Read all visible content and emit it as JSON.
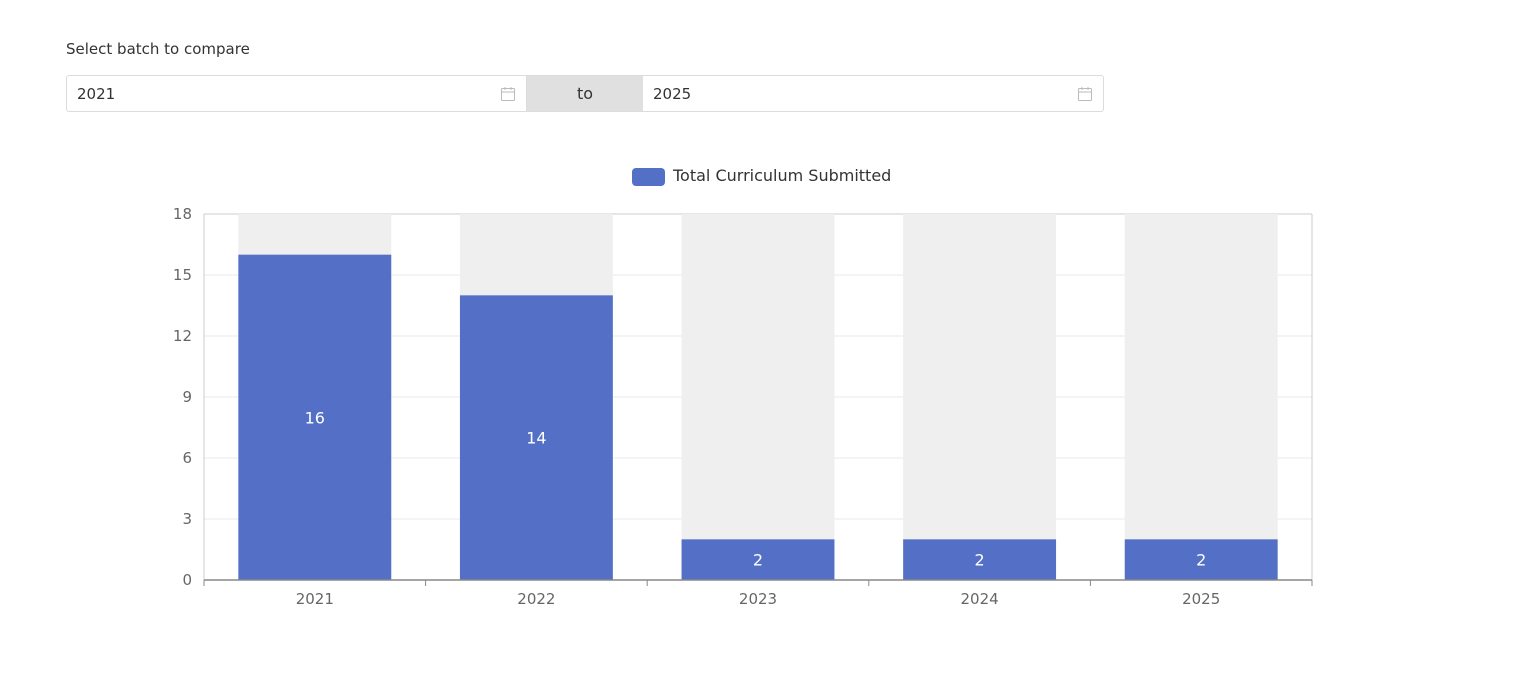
{
  "filter": {
    "label": "Select batch to compare",
    "start_value": "2021",
    "separator": "to",
    "end_value": "2025",
    "calendar_icon": "calendar-icon"
  },
  "colors": {
    "bar": "#5470c6",
    "bar_background": "#efefef",
    "grid": "#e6e9f0",
    "axis": "#888888"
  },
  "chart_data": {
    "type": "bar",
    "categories": [
      "2021",
      "2022",
      "2023",
      "2024",
      "2025"
    ],
    "series": [
      {
        "name": "Total Curriculum Submitted",
        "values": [
          16,
          14,
          2,
          2,
          2
        ]
      }
    ],
    "title": "",
    "xlabel": "",
    "ylabel": "",
    "ylim": [
      0,
      18
    ],
    "yticks": [
      0,
      3,
      6,
      9,
      12,
      15,
      18
    ],
    "grid": true,
    "legend_position": "top-center",
    "data_labels": true,
    "show_background_bars": true
  }
}
